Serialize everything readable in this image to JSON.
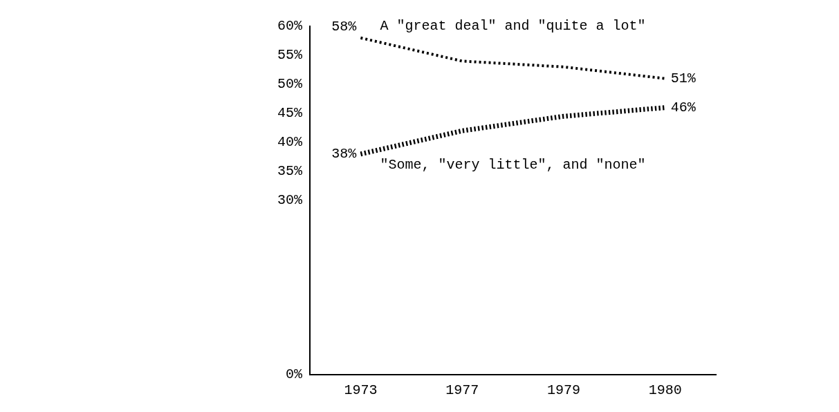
{
  "chart_data": {
    "type": "line",
    "categories": [
      "1973",
      "1977",
      "1979",
      "1980"
    ],
    "series": [
      {
        "name": "A \"great deal\" and \"quite a lot\"",
        "color": "#000000",
        "values": [
          58,
          54,
          53,
          51
        ],
        "value_labels": [
          "58%",
          null,
          null,
          "51%"
        ]
      },
      {
        "name": "\"Some, \"very little\", and \"none\"",
        "color": "#000000",
        "values": [
          38,
          42,
          44.5,
          46
        ],
        "value_labels": [
          "38%",
          null,
          null,
          "46%"
        ]
      }
    ],
    "ylim": [
      0,
      60
    ],
    "yticks": [
      {
        "value": 0,
        "label": "0%"
      },
      {
        "value": 30,
        "label": "30%"
      },
      {
        "value": 35,
        "label": "35%"
      },
      {
        "value": 40,
        "label": "40%"
      },
      {
        "value": 45,
        "label": "45%"
      },
      {
        "value": 50,
        "label": "50%"
      },
      {
        "value": 55,
        "label": "55%"
      },
      {
        "value": 60,
        "label": "60%"
      }
    ],
    "grid": false,
    "legend": false,
    "marker": "none",
    "line_style": "dotted"
  }
}
